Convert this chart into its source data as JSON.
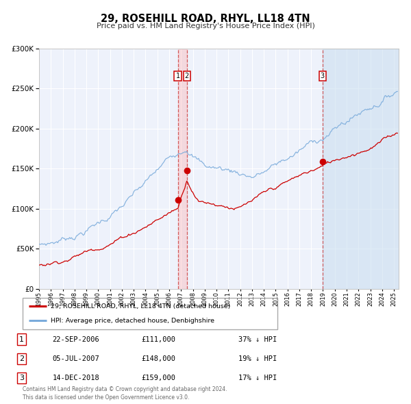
{
  "title": "29, ROSEHILL ROAD, RHYL, LL18 4TN",
  "subtitle": "Price paid vs. HM Land Registry's House Price Index (HPI)",
  "legend_label_red": "29, ROSEHILL ROAD, RHYL, LL18 4TN (detached house)",
  "legend_label_blue": "HPI: Average price, detached house, Denbighshire",
  "red_color": "#cc0000",
  "blue_color": "#7aabdb",
  "shade_color_pink": "#ffcccc",
  "shade_color_blue": "#dde8f5",
  "background_color": "#eef2fb",
  "transactions": [
    {
      "label": "1",
      "date_num": 2006.73,
      "price": 111000,
      "pct": "37%",
      "date_str": "22-SEP-2006"
    },
    {
      "label": "2",
      "date_num": 2007.5,
      "price": 148000,
      "pct": "19%",
      "date_str": "05-JUL-2007"
    },
    {
      "label": "3",
      "date_num": 2018.96,
      "price": 159000,
      "pct": "17%",
      "date_str": "14-DEC-2018"
    }
  ],
  "footer": "Contains HM Land Registry data © Crown copyright and database right 2024.\nThis data is licensed under the Open Government Licence v3.0.",
  "ylim": [
    0,
    300000
  ],
  "yticks": [
    0,
    50000,
    100000,
    150000,
    200000,
    250000,
    300000
  ],
  "xlim": [
    1995.0,
    2025.4
  ],
  "xticks": [
    1995,
    1996,
    1997,
    1998,
    1999,
    2000,
    2001,
    2002,
    2003,
    2004,
    2005,
    2006,
    2007,
    2008,
    2009,
    2010,
    2011,
    2012,
    2013,
    2014,
    2015,
    2016,
    2017,
    2018,
    2019,
    2020,
    2021,
    2022,
    2023,
    2024,
    2025
  ]
}
